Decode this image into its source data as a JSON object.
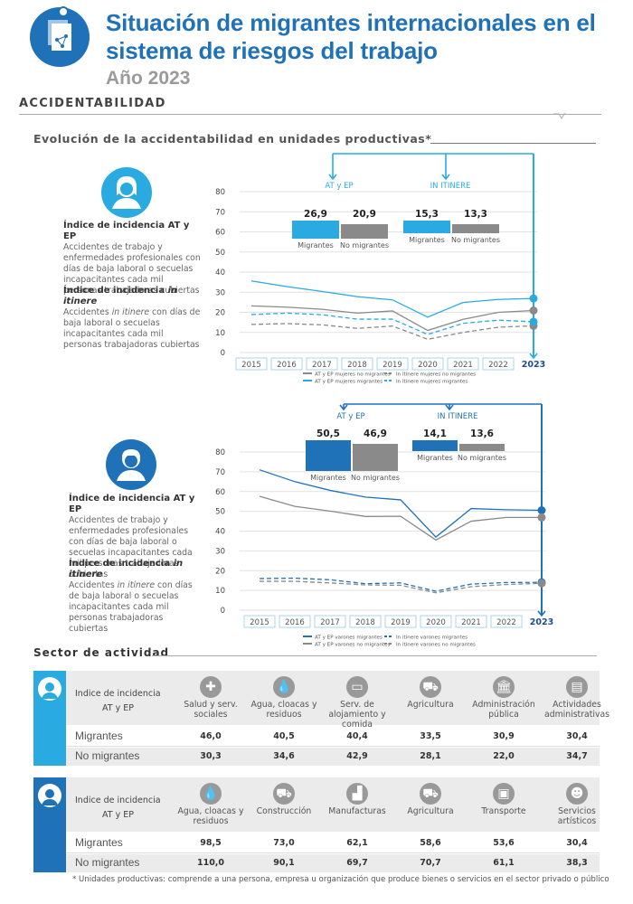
{
  "header": {
    "title": "Situación de migrantes internacionales en el sistema de riesgos del trabajo",
    "year": "Año 2023",
    "section": "ACCIDENTABILIDAD"
  },
  "evolution": {
    "title": "Evolución de la accidentabilidad en unidades productivas*"
  },
  "women_block": {
    "atep_title": "Índice de incidencia AT y EP",
    "atep_text": "Accidentes de trabajo y enfermedades profesionales con días de baja laboral o secuelas incapacitantes cada mil personas trabajadoras cubiertas",
    "itinere_title_pre": "Índice de incidencia ",
    "itinere_title_em": "in itinere",
    "itinere_text_pre": "Accidentes ",
    "itinere_text_em": "in itinere",
    "itinere_text_post": " con días de baja laboral o secuelas incapacitantes cada mil personas trabajadoras cubiertas"
  },
  "men_block": {
    "atep_title": "Índice de incidencia AT y EP",
    "atep_text": "Accidentes de trabajo y enfermedades profesionales con días de baja laboral o secuelas incapacitantes cada mil personas trabajadoras cubiertas",
    "itinere_title_pre": "Índice de incidencia ",
    "itinere_title_em": "in itinere",
    "itinere_text_pre": "Accidentes ",
    "itinere_text_em": "in itinere",
    "itinere_text_post": " con días de baja laboral o secuelas incapacitantes cada mil personas trabajadoras cubiertas"
  },
  "colors": {
    "migrant_women": "#29abe2",
    "migrant_men": "#1f72b8",
    "non_migrant": "#8a8a8a"
  },
  "chart_data": [
    {
      "type": "line",
      "x": [
        "2015",
        "2016",
        "2017",
        "2018",
        "2019",
        "2020",
        "2021",
        "2022",
        "2023"
      ],
      "ylim": [
        0,
        80
      ],
      "yticks": [
        0,
        10,
        20,
        30,
        40,
        50,
        60,
        70,
        80
      ],
      "series": [
        {
          "name": "AT y EP mujeres no migrantes",
          "values": [
            23.2,
            22.6,
            21.5,
            19.6,
            20.7,
            11.0,
            16.5,
            20.0,
            20.9
          ]
        },
        {
          "name": "AT y EP mujeres migrantes",
          "values": [
            35.6,
            32.8,
            30.4,
            27.8,
            26.2,
            17.6,
            24.9,
            26.4,
            26.9
          ]
        },
        {
          "name": "In itinere mujeres no migrantes",
          "values": [
            14.0,
            14.4,
            13.8,
            12.0,
            13.2,
            6.6,
            10.0,
            12.6,
            13.3
          ]
        },
        {
          "name": "In itinere mujeres migrantes",
          "values": [
            18.9,
            19.6,
            18.8,
            16.6,
            16.6,
            9.0,
            14.5,
            16.1,
            15.3
          ]
        }
      ],
      "callouts": {
        "atep_label": "AT y EP",
        "itinere_label": "IN ITINERE",
        "atep_values": [
          "26,9",
          "20,9"
        ],
        "itinere_values": [
          "15,3",
          "13,3"
        ],
        "labels": [
          "Migrantes",
          "No migrantes"
        ]
      }
    },
    {
      "type": "line",
      "x": [
        "2015",
        "2016",
        "2017",
        "2018",
        "2019",
        "2020",
        "2021",
        "2022",
        "2023"
      ],
      "ylim": [
        0,
        80
      ],
      "yticks": [
        0,
        10,
        20,
        30,
        40,
        50,
        60,
        70,
        80
      ],
      "series": [
        {
          "name": "AT y EP varones migrantes",
          "values": [
            71.0,
            65.0,
            60.6,
            57.2,
            55.8,
            37.0,
            51.4,
            50.8,
            50.5
          ]
        },
        {
          "name": "AT y EP varones no migrantes",
          "values": [
            57.6,
            52.5,
            50.1,
            47.4,
            47.5,
            35.5,
            45.0,
            46.9,
            46.9
          ]
        },
        {
          "name": "In itinere varones migrantes",
          "values": [
            16.0,
            16.2,
            15.4,
            13.4,
            13.8,
            9.6,
            13.2,
            14.0,
            14.1
          ]
        },
        {
          "name": "In itinere varones no migrantes",
          "values": [
            14.6,
            14.6,
            13.8,
            12.8,
            12.6,
            8.8,
            11.9,
            13.0,
            13.6
          ]
        }
      ],
      "callouts": {
        "atep_label": "AT y EP",
        "itinere_label": "IN ITINERE",
        "atep_values": [
          "50,5",
          "46,9"
        ],
        "itinere_values": [
          "14,1",
          "13,6"
        ],
        "labels": [
          "Migrantes",
          "No migrantes"
        ]
      }
    }
  ],
  "sector": {
    "title": "Sector de actividad",
    "women": {
      "label_line1": "Indice de incidencia",
      "label_line2": "AT y EP",
      "columns": [
        {
          "name": "Salud y serv. sociales",
          "icon": "plus-icon",
          "migrantes": "46,0",
          "no_migrantes": "30,3"
        },
        {
          "name": "Agua, cloacas y residuos",
          "icon": "water-drop-icon",
          "migrantes": "40,5",
          "no_migrantes": "34,6"
        },
        {
          "name": "Serv. de alojamiento y comida",
          "icon": "bed-icon",
          "migrantes": "40,4",
          "no_migrantes": "42,9"
        },
        {
          "name": "Agricultura",
          "icon": "tractor-icon",
          "migrantes": "33,5",
          "no_migrantes": "28,1"
        },
        {
          "name": "Administración pública",
          "icon": "building-icon",
          "migrantes": "30,9",
          "no_migrantes": "22,0"
        },
        {
          "name": "Actividades administrativas",
          "icon": "document-icon",
          "migrantes": "30,4",
          "no_migrantes": "34,7"
        }
      ],
      "row_migrantes": "Migrantes",
      "row_no_migrantes": "No migrantes"
    },
    "men": {
      "label_line1": "Indice de incidencia",
      "label_line2": "AT y EP",
      "columns": [
        {
          "name": "Agua, cloacas y residuos",
          "icon": "water-drop-icon",
          "migrantes": "98,5",
          "no_migrantes": "110,0"
        },
        {
          "name": "Construcción",
          "icon": "wheelbarrow-icon",
          "migrantes": "73,0",
          "no_migrantes": "90,1"
        },
        {
          "name": "Manufacturas",
          "icon": "factory-icon",
          "migrantes": "62,1",
          "no_migrantes": "69,7"
        },
        {
          "name": "Agricultura",
          "icon": "tractor-icon",
          "migrantes": "58,6",
          "no_migrantes": "70,7"
        },
        {
          "name": "Transporte",
          "icon": "bus-icon",
          "migrantes": "53,6",
          "no_migrantes": "61,1"
        },
        {
          "name": "Servicios artísticos",
          "icon": "theater-masks-icon",
          "migrantes": "30,4",
          "no_migrantes": "38,3"
        }
      ],
      "row_migrantes": "Migrantes",
      "row_no_migrantes": "No migrantes"
    }
  },
  "footnote": "* Unidades productivas: comprende a una persona, empresa u organización que produce bienes o servicios en el sector privado o público"
}
